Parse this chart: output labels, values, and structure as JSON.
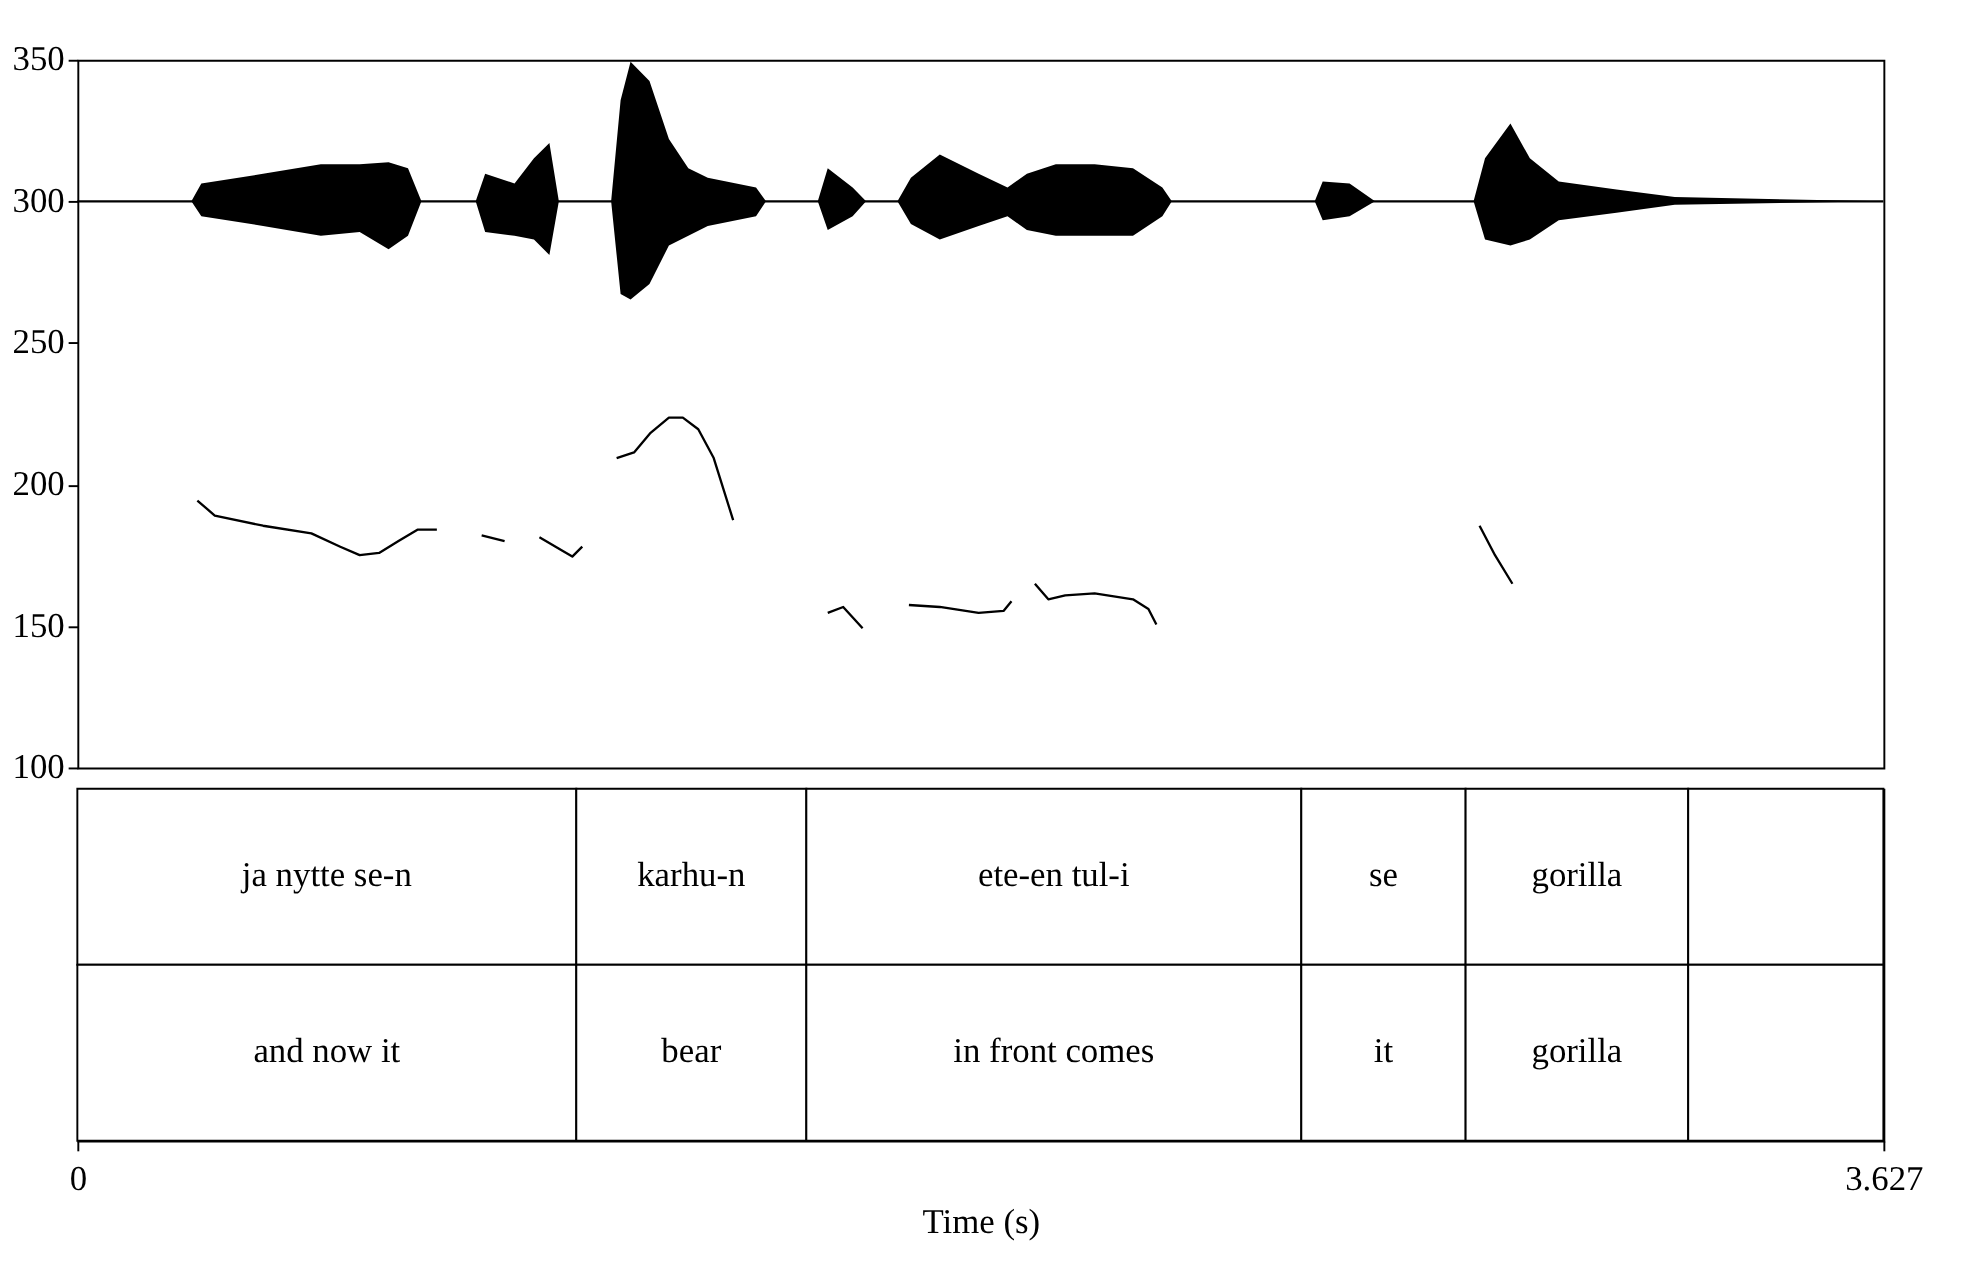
{
  "chart_data": [
    {
      "type": "line",
      "xlim": [
        0,
        3.627
      ],
      "ylim": [
        100,
        350
      ],
      "yticks": [
        100,
        150,
        200,
        250,
        300,
        350
      ],
      "tick_labels": "y",
      "series": [
        {
          "type": "line",
          "color": "#000000",
          "x": [
            0,
            0.229,
            0.249,
            0.373,
            0.489,
            0.567,
            0.625,
            0.664,
            0.691,
            0.8,
            0.819,
            0.878,
            0.917,
            0.948,
            0.967,
            1.072,
            1.091,
            1.111,
            1.149,
            1.188,
            1.227,
            1.266,
            1.363,
            1.383,
            1.487,
            1.507,
            1.557,
            1.584,
            1.647,
            1.674,
            1.732,
            1.81,
            1.868,
            1.907,
            1.965,
            2.043,
            2.12,
            2.179,
            2.198,
            2.485,
            2.501,
            2.555,
            2.606,
            2.804,
            2.827,
            2.878,
            2.917,
            2.975,
            3.091,
            3.208,
            3.627
          ],
          "values": [
            300,
            300,
            300,
            300,
            300,
            300,
            300,
            300,
            300,
            300,
            300,
            300,
            300,
            300,
            300,
            300,
            300,
            300,
            300,
            300,
            300,
            300,
            300,
            300,
            300,
            300,
            300,
            300,
            300,
            300,
            300,
            300,
            300,
            300,
            300,
            300,
            300,
            300,
            300,
            300,
            300,
            300,
            300,
            300,
            300,
            300,
            300,
            300,
            300,
            300,
            300
          ],
          "upper": [
            300,
            300,
            306.3,
            309.7,
            313.1,
            313.1,
            313.8,
            311.7,
            300,
            300,
            309.7,
            306.3,
            315.2,
            320.6,
            300,
            300,
            335.7,
            349.3,
            342.5,
            322.0,
            311.7,
            308.3,
            304.9,
            300,
            300,
            311.7,
            304.9,
            300,
            300,
            308.3,
            316.5,
            309.7,
            304.9,
            309.7,
            313.1,
            313.1,
            311.7,
            304.9,
            300,
            300,
            307.0,
            306.3,
            300,
            300,
            315.2,
            327.5,
            315.2,
            307.0,
            304.2,
            301.5,
            300
          ],
          "lower": [
            300,
            300,
            294.7,
            291.3,
            287.8,
            289.2,
            283.1,
            287.8,
            300,
            300,
            289.2,
            287.8,
            286.5,
            281.0,
            300,
            300,
            267.3,
            265.3,
            270.8,
            284.4,
            287.8,
            291.3,
            294.7,
            300,
            300,
            289.9,
            294.7,
            300,
            300,
            292.0,
            286.5,
            291.3,
            294.7,
            289.9,
            287.8,
            287.8,
            287.8,
            294.7,
            300,
            300,
            293.3,
            294.7,
            300,
            300,
            286.5,
            284.4,
            286.5,
            293.3,
            296.0,
            298.8,
            300
          ]
        },
        {
          "type": "line",
          "color": "#000000",
          "x": [
            0.241,
            0.276,
            0.373,
            0.47,
            0.528,
            0.567,
            0.606,
            0.645,
            0.683,
            0.722,
            0.76,
            0.812,
            0.858,
            0.9,
            0.928,
            0.975,
            0.994,
            1.014,
            1.05,
            1.083,
            1.118,
            1.15,
            1.188,
            1.216,
            1.247,
            1.278,
            1.317,
            1.4,
            1.507,
            1.538,
            1.577,
            1.62,
            1.67,
            1.732,
            1.81,
            1.86,
            1.876,
            1.9,
            1.923,
            1.95,
            1.984,
            2.043,
            2.12,
            2.151,
            2.167,
            2.5,
            2.816,
            2.847,
            2.882
          ],
          "values": [
            194.3,
            189,
            185.4,
            182.7,
            178,
            175,
            175.8,
            180,
            184,
            184,
            null,
            182,
            180,
            null,
            181.3,
            176.5,
            174.5,
            178,
            null,
            209.3,
            211.3,
            218,
            223.6,
            223.6,
            219.5,
            209.3,
            187.4,
            null,
            154.6,
            156.7,
            149.2,
            null,
            157.4,
            156.7,
            154.6,
            155.3,
            158.7,
            null,
            164.9,
            159.4,
            160.8,
            161.5,
            159.4,
            156,
            150.5,
            null,
            185.4,
            175,
            164.9
          ]
        }
      ]
    },
    {
      "type": "bar",
      "orientation": "horizontal",
      "stacked": true,
      "categories": [
        null,
        null
      ],
      "xlim": [
        0,
        3.627
      ],
      "xticks": [
        0,
        3.627
      ],
      "xlabel": "Time (s)",
      "tick_labels": "x",
      "series": [
        {
          "color": "#ffffff",
          "values": [
            1.002,
            1.002
          ],
          "value_labels": [
            "ja nytte se-n",
            "and now it"
          ]
        },
        {
          "color": "#ffffff",
          "values": [
            0.462,
            0.462
          ],
          "value_labels": [
            "karhu-n",
            "bear"
          ]
        },
        {
          "color": "#ffffff",
          "values": [
            0.994,
            0.994
          ],
          "value_labels": [
            "ete-en tul-i",
            "in front comes"
          ]
        },
        {
          "color": "#ffffff",
          "values": [
            0.33,
            0.33
          ],
          "value_labels": [
            "se",
            "it"
          ]
        },
        {
          "color": "#ffffff",
          "values": [
            0.447,
            0.447
          ],
          "value_labels": [
            "gorilla",
            "gorilla"
          ]
        },
        {
          "color": "#ffffff",
          "values": [
            0.392,
            0.392
          ],
          "value_labels": [
            null,
            null
          ]
        }
      ]
    }
  ]
}
